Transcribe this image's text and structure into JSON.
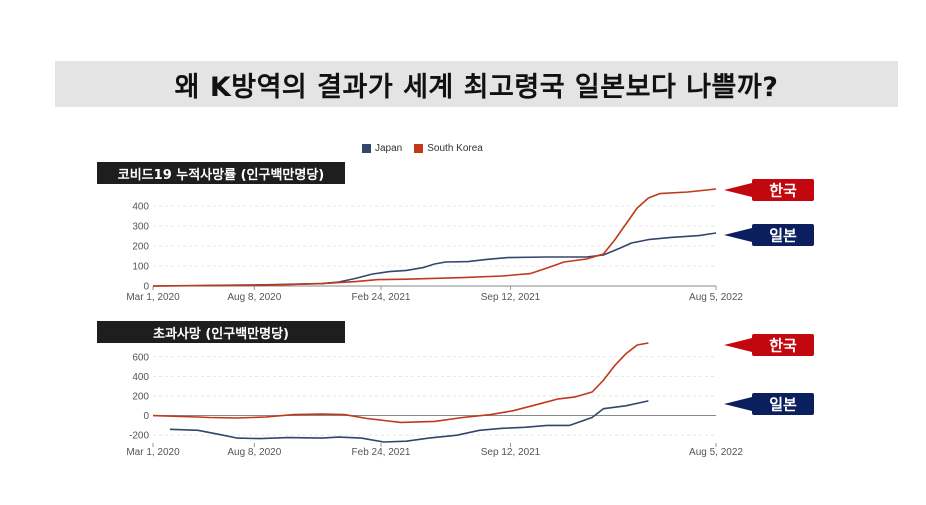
{
  "title": "왜 K방역의 결과가 세계 최고령국 일본보다 나쁠까?",
  "legend": [
    {
      "name": "Japan",
      "color": "#34466b"
    },
    {
      "name": "South Korea",
      "color": "#c0391a"
    }
  ],
  "colors": {
    "japan": "#34466b",
    "korea": "#c0391a",
    "tag_korea": "#c3070f",
    "tag_japan": "#0b1f5e"
  },
  "tags": {
    "korea": "한국",
    "japan": "일본"
  },
  "chart_data": [
    {
      "type": "line",
      "title": "코비드19 누적사망률 (인구백만명당)",
      "x_ticks": [
        "Mar 1, 2020",
        "Aug 8, 2020",
        "Feb 24, 2021",
        "Sep 12, 2021",
        "Aug 5, 2022"
      ],
      "y_ticks": [
        0,
        100,
        200,
        300,
        400
      ],
      "ylim": [
        0,
        450
      ],
      "grid": true,
      "series": [
        {
          "name": "Japan",
          "points": [
            [
              0,
              0
            ],
            [
              0.1,
              3
            ],
            [
              0.2,
              6
            ],
            [
              0.3,
              12
            ],
            [
              0.33,
              20
            ],
            [
              0.36,
              38
            ],
            [
              0.39,
              60
            ],
            [
              0.42,
              72
            ],
            [
              0.45,
              78
            ],
            [
              0.48,
              92
            ],
            [
              0.5,
              110
            ],
            [
              0.52,
              120
            ],
            [
              0.56,
              122
            ],
            [
              0.59,
              132
            ],
            [
              0.63,
              142
            ],
            [
              0.7,
              145
            ],
            [
              0.77,
              145
            ],
            [
              0.8,
              155
            ],
            [
              0.83,
              190
            ],
            [
              0.85,
              215
            ],
            [
              0.88,
              232
            ],
            [
              0.92,
              243
            ],
            [
              0.97,
              252
            ],
            [
              1.0,
              265
            ]
          ]
        },
        {
          "name": "South Korea",
          "points": [
            [
              0,
              0
            ],
            [
              0.2,
              4
            ],
            [
              0.3,
              12
            ],
            [
              0.36,
              22
            ],
            [
              0.4,
              32
            ],
            [
              0.45,
              34
            ],
            [
              0.55,
              42
            ],
            [
              0.62,
              50
            ],
            [
              0.67,
              62
            ],
            [
              0.7,
              90
            ],
            [
              0.73,
              120
            ],
            [
              0.77,
              135
            ],
            [
              0.8,
              160
            ],
            [
              0.82,
              230
            ],
            [
              0.84,
              310
            ],
            [
              0.86,
              390
            ],
            [
              0.88,
              440
            ],
            [
              0.9,
              462
            ],
            [
              0.95,
              470
            ],
            [
              1.0,
              485
            ]
          ]
        }
      ]
    },
    {
      "type": "line",
      "title": "초과사망 (인구백만명당)",
      "x_ticks": [
        "Mar 1, 2020",
        "Aug 8, 2020",
        "Feb 24, 2021",
        "Sep 12, 2021",
        "Aug 5, 2022"
      ],
      "y_ticks": [
        -200,
        0,
        200,
        400,
        600
      ],
      "ylim": [
        -280,
        720
      ],
      "grid": true,
      "series": [
        {
          "name": "Japan",
          "points": [
            [
              0.03,
              -140
            ],
            [
              0.08,
              -150
            ],
            [
              0.12,
              -195
            ],
            [
              0.15,
              -230
            ],
            [
              0.19,
              -235
            ],
            [
              0.24,
              -225
            ],
            [
              0.3,
              -230
            ],
            [
              0.33,
              -220
            ],
            [
              0.37,
              -230
            ],
            [
              0.41,
              -270
            ],
            [
              0.45,
              -262
            ],
            [
              0.49,
              -230
            ],
            [
              0.54,
              -200
            ],
            [
              0.58,
              -150
            ],
            [
              0.62,
              -130
            ],
            [
              0.66,
              -120
            ],
            [
              0.7,
              -100
            ],
            [
              0.74,
              -100
            ],
            [
              0.78,
              -20
            ],
            [
              0.8,
              70
            ],
            [
              0.84,
              100
            ],
            [
              0.88,
              150
            ]
          ]
        },
        {
          "name": "South Korea",
          "points": [
            [
              0,
              0
            ],
            [
              0.05,
              -10
            ],
            [
              0.08,
              -15
            ],
            [
              0.1,
              -20
            ],
            [
              0.15,
              -25
            ],
            [
              0.2,
              -15
            ],
            [
              0.25,
              10
            ],
            [
              0.3,
              15
            ],
            [
              0.34,
              10
            ],
            [
              0.38,
              -30
            ],
            [
              0.44,
              -70
            ],
            [
              0.5,
              -60
            ],
            [
              0.55,
              -20
            ],
            [
              0.6,
              10
            ],
            [
              0.64,
              50
            ],
            [
              0.68,
              110
            ],
            [
              0.72,
              170
            ],
            [
              0.75,
              190
            ],
            [
              0.78,
              240
            ],
            [
              0.8,
              360
            ],
            [
              0.82,
              510
            ],
            [
              0.84,
              630
            ],
            [
              0.86,
              720
            ],
            [
              0.88,
              740
            ]
          ]
        }
      ]
    }
  ]
}
